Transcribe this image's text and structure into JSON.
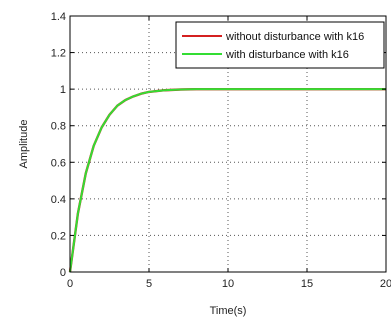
{
  "chart_data": {
    "type": "line",
    "title": "",
    "xlabel": "Time(s)",
    "ylabel": "Amplitude",
    "xlim": [
      0,
      20
    ],
    "ylim": [
      0,
      1.4
    ],
    "xticks": [
      0,
      5,
      10,
      15,
      20
    ],
    "yticks": [
      0,
      0.2,
      0.4,
      0.6,
      0.8,
      1,
      1.2,
      1.4
    ],
    "xtick_labels": [
      "0",
      "5",
      "10",
      "15",
      "20"
    ],
    "ytick_labels": [
      "0",
      "0.2",
      "0.4",
      "0.6",
      "0.8",
      "1",
      "1.2",
      "1.4"
    ],
    "grid": true,
    "legend_position": "top-right",
    "series": [
      {
        "name": "without disturbance with k16",
        "color": "#d42020",
        "x": [
          0,
          0.5,
          1,
          1.5,
          2,
          2.5,
          3,
          3.5,
          4,
          4.5,
          5,
          6,
          7,
          8,
          10,
          12,
          15,
          18,
          20
        ],
        "y": [
          0,
          0.32,
          0.54,
          0.69,
          0.79,
          0.86,
          0.91,
          0.94,
          0.96,
          0.975,
          0.985,
          0.994,
          0.998,
          1.0,
          1.0,
          1.0,
          1.0,
          1.0,
          1.0
        ]
      },
      {
        "name": "with disturbance with k16",
        "color": "#33dd33",
        "x": [
          0,
          0.5,
          1,
          1.5,
          2,
          2.5,
          3,
          3.5,
          4,
          4.5,
          5,
          6,
          7,
          8,
          10,
          12,
          15,
          18,
          20
        ],
        "y": [
          0,
          0.32,
          0.54,
          0.69,
          0.79,
          0.86,
          0.91,
          0.94,
          0.96,
          0.975,
          0.985,
          0.994,
          0.998,
          1.0,
          1.0,
          1.0,
          1.0,
          1.0,
          1.0
        ]
      }
    ]
  }
}
